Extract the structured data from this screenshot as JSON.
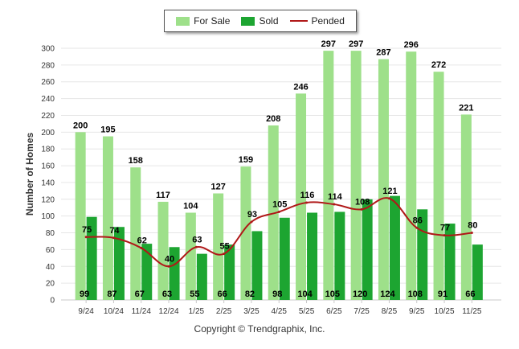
{
  "legend": {
    "for_sale": "For Sale",
    "sold": "Sold",
    "pended": "Pended"
  },
  "copyright": "Copyright © Trendgraphix, Inc.",
  "colors": {
    "for_sale": "#9ee08a",
    "sold": "#1da531",
    "pended": "#b01818",
    "grid": "#e6e6e6"
  },
  "chart_data": {
    "type": "bar",
    "title": "",
    "xlabel": "",
    "ylabel": "Number of Homes",
    "ylim": [
      0,
      300
    ],
    "yticks": [
      0,
      20,
      40,
      60,
      80,
      100,
      120,
      140,
      160,
      180,
      200,
      220,
      240,
      260,
      280,
      300
    ],
    "categories": [
      "9/24",
      "10/24",
      "11/24",
      "12/24",
      "1/25",
      "2/25",
      "3/25",
      "4/25",
      "5/25",
      "6/25",
      "7/25",
      "8/25",
      "9/25",
      "10/25",
      "11/25"
    ],
    "series": [
      {
        "name": "For Sale",
        "kind": "bar",
        "values": [
          200,
          195,
          158,
          117,
          104,
          127,
          159,
          208,
          246,
          297,
          297,
          287,
          296,
          272,
          221
        ]
      },
      {
        "name": "Sold",
        "kind": "bar",
        "values": [
          99,
          87,
          67,
          63,
          55,
          66,
          82,
          98,
          104,
          105,
          120,
          124,
          108,
          91,
          66
        ]
      },
      {
        "name": "Pended",
        "kind": "line",
        "values": [
          75,
          74,
          62,
          40,
          63,
          55,
          93,
          105,
          116,
          114,
          108,
          121,
          86,
          77,
          80
        ]
      }
    ]
  }
}
